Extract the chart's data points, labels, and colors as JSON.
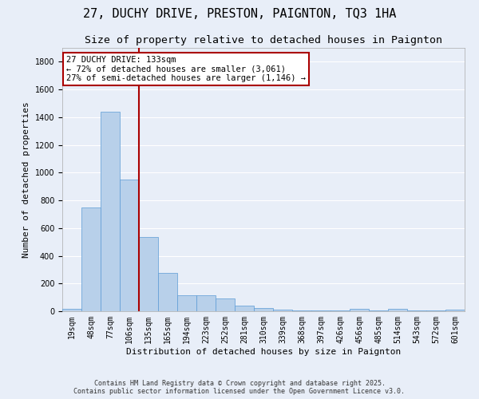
{
  "title": "27, DUCHY DRIVE, PRESTON, PAIGNTON, TQ3 1HA",
  "subtitle": "Size of property relative to detached houses in Paignton",
  "xlabel": "Distribution of detached houses by size in Paignton",
  "ylabel": "Number of detached properties",
  "bin_labels": [
    "19sqm",
    "48sqm",
    "77sqm",
    "106sqm",
    "135sqm",
    "165sqm",
    "194sqm",
    "223sqm",
    "252sqm",
    "281sqm",
    "310sqm",
    "339sqm",
    "368sqm",
    "397sqm",
    "426sqm",
    "456sqm",
    "485sqm",
    "514sqm",
    "543sqm",
    "572sqm",
    "601sqm"
  ],
  "bar_heights": [
    20,
    750,
    1440,
    950,
    535,
    275,
    115,
    115,
    95,
    40,
    25,
    10,
    5,
    5,
    5,
    20,
    5,
    20,
    5,
    5,
    10
  ],
  "bar_color": "#b8d0ea",
  "bar_edge_color": "#5b9bd5",
  "redline_x": 3.5,
  "annotation_text": "27 DUCHY DRIVE: 133sqm\n← 72% of detached houses are smaller (3,061)\n27% of semi-detached houses are larger (1,146) →",
  "annotation_box_color": "#ffffff",
  "annotation_box_edge": "#aa0000",
  "redline_color": "#aa0000",
  "footer_line1": "Contains HM Land Registry data © Crown copyright and database right 2025.",
  "footer_line2": "Contains public sector information licensed under the Open Government Licence v3.0.",
  "ylim": [
    0,
    1900
  ],
  "yticks": [
    0,
    200,
    400,
    600,
    800,
    1000,
    1200,
    1400,
    1600,
    1800
  ],
  "bg_color": "#e8eef8",
  "grid_color": "#ffffff",
  "title_fontsize": 11,
  "subtitle_fontsize": 9.5,
  "axis_label_fontsize": 8,
  "tick_fontsize": 7,
  "footer_fontsize": 6,
  "annotation_fontsize": 7.5
}
